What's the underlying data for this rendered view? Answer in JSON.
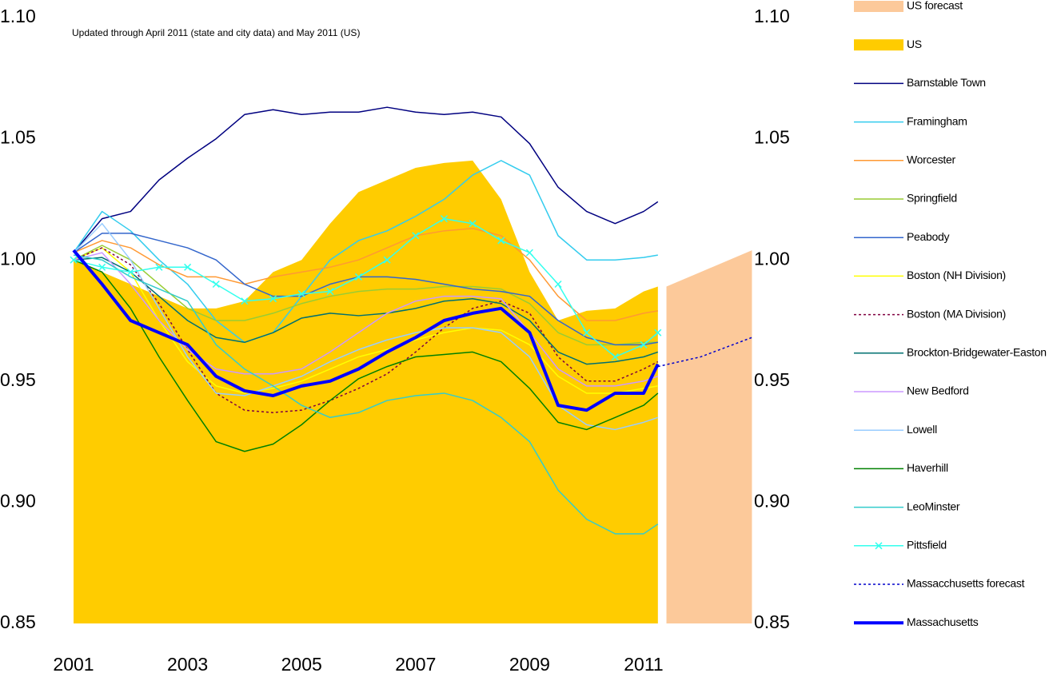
{
  "chart_data": {
    "type": "line",
    "subtitle": "Updated through April 2011 (state and city data) and May 2011 (US)",
    "x": [
      2001,
      2001.5,
      2002,
      2002.5,
      2003,
      2003.5,
      2004,
      2004.5,
      2005,
      2005.5,
      2006,
      2006.5,
      2007,
      2007.5,
      2008,
      2008.5,
      2009,
      2009.5,
      2010,
      2010.5,
      2011,
      2011.25
    ],
    "xlim": [
      2001,
      2012.9
    ],
    "xticks": [
      2001,
      2003,
      2005,
      2007,
      2009,
      2011
    ],
    "ylim": [
      0.85,
      1.1
    ],
    "yticks": [
      0.85,
      {
        "value": 0.9,
        "label": "0.90"
      },
      0.95,
      {
        "value": 1.0,
        "label": "1.00"
      },
      1.05,
      {
        "value": 1.1,
        "label": "1.10"
      }
    ],
    "series": [
      {
        "name": "US forecast",
        "kind": "area",
        "color": "#fcc99a",
        "x": [
          2011.4,
          2012,
          2012.9
        ],
        "values": [
          0.989,
          0.995,
          1.004
        ]
      },
      {
        "name": "US",
        "kind": "area",
        "color": "#ffcc00",
        "values": [
          1.0,
          0.995,
          0.99,
          0.985,
          0.98,
          0.98,
          0.983,
          0.995,
          1.0,
          1.015,
          1.028,
          1.033,
          1.038,
          1.04,
          1.041,
          1.025,
          0.995,
          0.975,
          0.979,
          0.98,
          0.987,
          0.989
        ]
      },
      {
        "name": "Barnstable Town",
        "color": "#000080",
        "values": [
          1.003,
          1.017,
          1.02,
          1.033,
          1.042,
          1.05,
          1.06,
          1.062,
          1.06,
          1.061,
          1.061,
          1.063,
          1.061,
          1.06,
          1.061,
          1.059,
          1.048,
          1.03,
          1.02,
          1.015,
          1.02,
          1.024
        ]
      },
      {
        "name": "Framingham",
        "color": "#33ccee",
        "values": [
          1.003,
          1.02,
          1.012,
          1.0,
          0.99,
          0.975,
          0.966,
          0.97,
          0.985,
          1.0,
          1.008,
          1.012,
          1.018,
          1.025,
          1.035,
          1.041,
          1.035,
          1.01,
          1.0,
          1.0,
          1.001,
          1.002
        ]
      },
      {
        "name": "Worcester",
        "color": "#ff9933",
        "values": [
          1.003,
          1.008,
          1.005,
          0.998,
          0.993,
          0.993,
          0.99,
          0.993,
          0.995,
          0.997,
          1.0,
          1.005,
          1.01,
          1.012,
          1.013,
          1.01,
          1.0,
          0.985,
          0.975,
          0.975,
          0.978,
          0.979
        ]
      },
      {
        "name": "Springfield",
        "color": "#99cc33",
        "values": [
          1.0,
          1.006,
          1.0,
          0.99,
          0.98,
          0.975,
          0.975,
          0.978,
          0.982,
          0.985,
          0.987,
          0.988,
          0.988,
          0.989,
          0.989,
          0.988,
          0.982,
          0.97,
          0.965,
          0.965,
          0.966,
          0.966
        ]
      },
      {
        "name": "Peabody",
        "color": "#3366cc",
        "values": [
          1.003,
          1.011,
          1.011,
          1.008,
          1.005,
          1.0,
          0.99,
          0.985,
          0.985,
          0.99,
          0.993,
          0.993,
          0.992,
          0.99,
          0.988,
          0.987,
          0.985,
          0.975,
          0.968,
          0.965,
          0.965,
          0.966
        ]
      },
      {
        "name": "Boston (NH Division)",
        "color": "#ffff00",
        "values": [
          1.0,
          1.005,
          0.995,
          0.975,
          0.958,
          0.948,
          0.945,
          0.947,
          0.95,
          0.955,
          0.96,
          0.963,
          0.967,
          0.97,
          0.972,
          0.971,
          0.965,
          0.952,
          0.945,
          0.945,
          0.947,
          0.948
        ]
      },
      {
        "name": "Boston (MA Division)",
        "color": "#800040",
        "dash": true,
        "values": [
          1.0,
          1.005,
          0.998,
          0.982,
          0.963,
          0.945,
          0.938,
          0.937,
          0.938,
          0.942,
          0.947,
          0.953,
          0.962,
          0.972,
          0.98,
          0.983,
          0.978,
          0.96,
          0.95,
          0.95,
          0.955,
          0.958
        ]
      },
      {
        "name": "Brockton-Bridgewater-Easton",
        "color": "#007070",
        "values": [
          1.0,
          1.001,
          0.995,
          0.985,
          0.975,
          0.968,
          0.966,
          0.97,
          0.976,
          0.978,
          0.977,
          0.978,
          0.98,
          0.983,
          0.984,
          0.982,
          0.975,
          0.962,
          0.957,
          0.958,
          0.96,
          0.962
        ]
      },
      {
        "name": "New Bedford",
        "color": "#cc99ff",
        "values": [
          1.0,
          1.003,
          0.99,
          0.975,
          0.963,
          0.955,
          0.953,
          0.953,
          0.955,
          0.962,
          0.97,
          0.978,
          0.983,
          0.985,
          0.985,
          0.984,
          0.97,
          0.955,
          0.948,
          0.948,
          0.95,
          0.952
        ]
      },
      {
        "name": "Lowell",
        "color": "#99ccff",
        "values": [
          1.003,
          1.015,
          1.0,
          0.98,
          0.96,
          0.945,
          0.944,
          0.948,
          0.952,
          0.958,
          0.963,
          0.967,
          0.97,
          0.972,
          0.972,
          0.97,
          0.96,
          0.94,
          0.932,
          0.93,
          0.933,
          0.935
        ]
      },
      {
        "name": "Haverhill",
        "color": "#008000",
        "values": [
          1.0,
          0.995,
          0.98,
          0.96,
          0.942,
          0.925,
          0.921,
          0.924,
          0.932,
          0.942,
          0.951,
          0.956,
          0.96,
          0.961,
          0.962,
          0.958,
          0.947,
          0.933,
          0.93,
          0.935,
          0.94,
          0.945
        ]
      },
      {
        "name": "LeoMinster",
        "color": "#33cccc",
        "values": [
          1.002,
          1.0,
          0.993,
          0.988,
          0.983,
          0.965,
          0.955,
          0.948,
          0.94,
          0.935,
          0.937,
          0.942,
          0.944,
          0.945,
          0.942,
          0.935,
          0.925,
          0.905,
          0.893,
          0.887,
          0.887,
          0.891
        ]
      },
      {
        "name": "Pittsfield",
        "color": "#33ffee",
        "marker": "x",
        "values": [
          1.0,
          0.997,
          0.995,
          0.997,
          0.997,
          0.99,
          0.983,
          0.984,
          0.986,
          0.987,
          0.993,
          1.0,
          1.01,
          1.017,
          1.015,
          1.008,
          1.003,
          0.99,
          0.97,
          0.96,
          0.965,
          0.97
        ]
      },
      {
        "name": "Massacchusetts forecast",
        "color": "#0000cc",
        "dash": true,
        "x": [
          2011.25,
          2012,
          2012.9
        ],
        "values": [
          0.956,
          0.96,
          0.968
        ]
      },
      {
        "name": "Massachusetts",
        "color": "#0000ff",
        "width": 4,
        "values": [
          1.004,
          0.99,
          0.975,
          0.97,
          0.965,
          0.952,
          0.946,
          0.944,
          0.948,
          0.95,
          0.955,
          0.962,
          0.968,
          0.975,
          0.978,
          0.98,
          0.97,
          0.94,
          0.938,
          0.945,
          0.945,
          0.957
        ]
      }
    ]
  }
}
